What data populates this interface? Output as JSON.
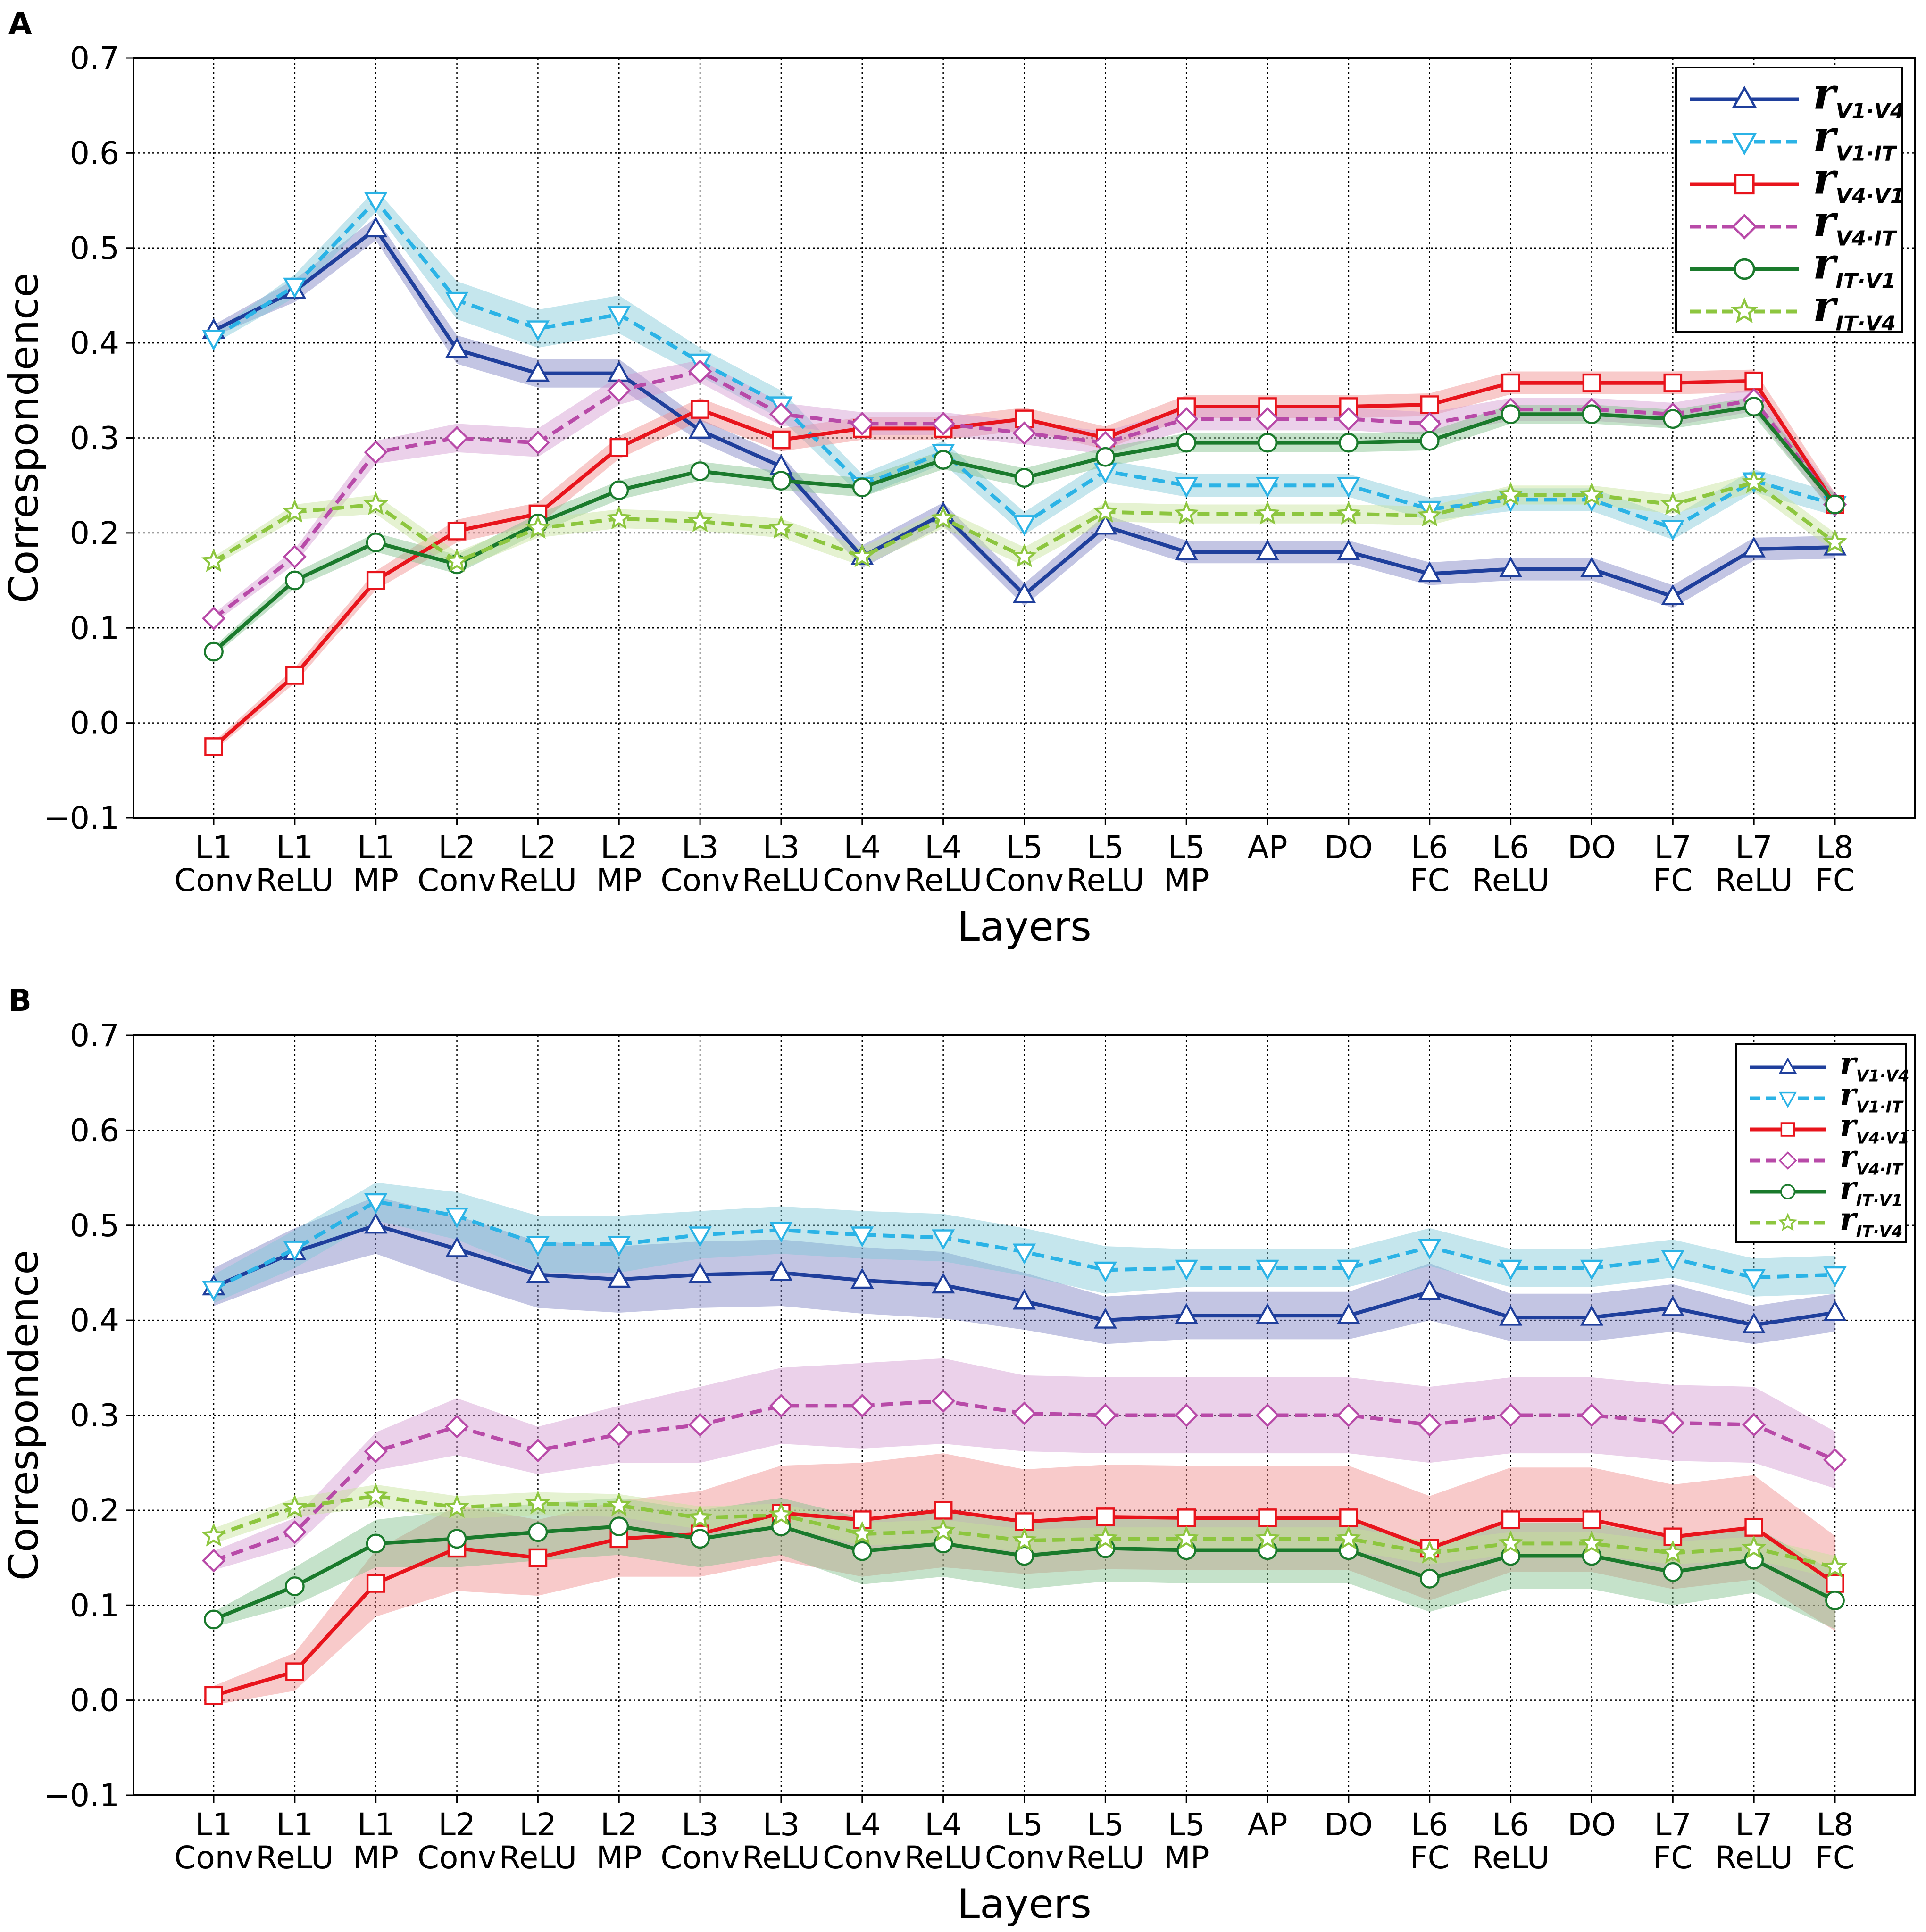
{
  "chart_data": [
    {
      "panel_label": "A",
      "type": "line",
      "xlabel": "Layers",
      "ylabel": "Correspondence",
      "ylim": [
        -0.1,
        0.7
      ],
      "yticks": [
        "−0.1",
        "0.0",
        "0.1",
        "0.2",
        "0.3",
        "0.4",
        "0.5",
        "0.6",
        "0.7"
      ],
      "grid": true,
      "legend_position": "top-right",
      "categories": [
        [
          "L1",
          "Conv"
        ],
        [
          "L1",
          "ReLU"
        ],
        [
          "L1",
          "MP"
        ],
        [
          "L2",
          "Conv"
        ],
        [
          "L2",
          "ReLU"
        ],
        [
          "L2",
          "MP"
        ],
        [
          "L3",
          "Conv"
        ],
        [
          "L3",
          "ReLU"
        ],
        [
          "L4",
          "Conv"
        ],
        [
          "L4",
          "ReLU"
        ],
        [
          "L5",
          "Conv"
        ],
        [
          "L5",
          "ReLU"
        ],
        [
          "L5",
          "MP"
        ],
        [
          "AP",
          ""
        ],
        [
          "DO",
          ""
        ],
        [
          "L6",
          "FC"
        ],
        [
          "L6",
          "ReLU"
        ],
        [
          "DO",
          ""
        ],
        [
          "L7",
          "FC"
        ],
        [
          "L7",
          "ReLU"
        ],
        [
          "L8",
          "FC"
        ]
      ],
      "series": [
        {
          "name": "r",
          "sub": "V1·V4",
          "color": "#1f3f9c",
          "band": "#7b7fc2",
          "style": "solid",
          "marker": "triangle-up",
          "values": [
            0.413,
            0.455,
            0.52,
            0.393,
            0.368,
            0.368,
            0.308,
            0.27,
            0.175,
            0.22,
            0.135,
            0.207,
            0.18,
            0.18,
            0.18,
            0.157,
            0.162,
            0.162,
            0.133,
            0.183,
            0.185
          ],
          "err": [
            0.006,
            0.012,
            0.012,
            0.015,
            0.015,
            0.015,
            0.012,
            0.012,
            0.012,
            0.012,
            0.012,
            0.012,
            0.012,
            0.012,
            0.012,
            0.012,
            0.012,
            0.012,
            0.012,
            0.012,
            0.012
          ]
        },
        {
          "name": "r",
          "sub": "V1·IT",
          "color": "#2bb3e6",
          "band": "#7fc7d8",
          "style": "dashed",
          "marker": "triangle-down",
          "values": [
            0.405,
            0.46,
            0.55,
            0.445,
            0.415,
            0.43,
            0.38,
            0.335,
            0.25,
            0.285,
            0.21,
            0.265,
            0.25,
            0.25,
            0.25,
            0.225,
            0.235,
            0.235,
            0.205,
            0.255,
            0.23
          ],
          "err": [
            0.006,
            0.012,
            0.012,
            0.02,
            0.02,
            0.02,
            0.015,
            0.015,
            0.012,
            0.012,
            0.012,
            0.012,
            0.012,
            0.012,
            0.012,
            0.012,
            0.012,
            0.012,
            0.012,
            0.012,
            0.012
          ]
        },
        {
          "name": "r",
          "sub": "V4·V1",
          "color": "#e8141c",
          "band": "#f08a8a",
          "style": "solid",
          "marker": "square",
          "values": [
            -0.025,
            0.05,
            0.15,
            0.202,
            0.22,
            0.29,
            0.33,
            0.298,
            0.31,
            0.31,
            0.32,
            0.3,
            0.333,
            0.333,
            0.333,
            0.335,
            0.358,
            0.358,
            0.358,
            0.36,
            0.23
          ],
          "err": [
            0.005,
            0.008,
            0.01,
            0.012,
            0.012,
            0.012,
            0.012,
            0.012,
            0.012,
            0.012,
            0.012,
            0.012,
            0.012,
            0.012,
            0.012,
            0.012,
            0.012,
            0.012,
            0.012,
            0.012,
            0.012
          ]
        },
        {
          "name": "r",
          "sub": "V4·IT",
          "color": "#b84aa8",
          "band": "#d39ad0",
          "style": "dashed",
          "marker": "diamond",
          "values": [
            0.11,
            0.175,
            0.285,
            0.3,
            0.295,
            0.35,
            0.37,
            0.325,
            0.315,
            0.315,
            0.305,
            0.295,
            0.32,
            0.32,
            0.32,
            0.315,
            0.33,
            0.33,
            0.325,
            0.34,
            0.23
          ],
          "err": [
            0.005,
            0.008,
            0.012,
            0.015,
            0.015,
            0.015,
            0.012,
            0.012,
            0.012,
            0.012,
            0.012,
            0.012,
            0.012,
            0.012,
            0.012,
            0.012,
            0.012,
            0.012,
            0.012,
            0.012,
            0.012
          ]
        },
        {
          "name": "r",
          "sub": "IT·V1",
          "color": "#1a7a2c",
          "band": "#7fbf8a",
          "style": "solid",
          "marker": "circle",
          "values": [
            0.075,
            0.15,
            0.19,
            0.167,
            0.21,
            0.245,
            0.265,
            0.255,
            0.248,
            0.277,
            0.258,
            0.28,
            0.295,
            0.295,
            0.295,
            0.297,
            0.325,
            0.325,
            0.32,
            0.333,
            0.23
          ],
          "err": [
            0.005,
            0.008,
            0.01,
            0.01,
            0.01,
            0.01,
            0.01,
            0.01,
            0.01,
            0.01,
            0.01,
            0.01,
            0.01,
            0.01,
            0.01,
            0.01,
            0.01,
            0.01,
            0.01,
            0.01,
            0.01
          ]
        },
        {
          "name": "r",
          "sub": "IT·V4",
          "color": "#8dc63f",
          "band": "#c6e39a",
          "style": "dashed",
          "marker": "star",
          "values": [
            0.17,
            0.222,
            0.23,
            0.17,
            0.205,
            0.215,
            0.212,
            0.205,
            0.175,
            0.215,
            0.175,
            0.222,
            0.22,
            0.22,
            0.22,
            0.218,
            0.24,
            0.24,
            0.23,
            0.253,
            0.19
          ],
          "err": [
            0.005,
            0.008,
            0.01,
            0.01,
            0.01,
            0.01,
            0.01,
            0.01,
            0.01,
            0.01,
            0.01,
            0.01,
            0.01,
            0.01,
            0.01,
            0.01,
            0.01,
            0.01,
            0.01,
            0.01,
            0.01
          ]
        }
      ]
    },
    {
      "panel_label": "B",
      "type": "line",
      "xlabel": "Layers",
      "ylabel": "Correspondence",
      "ylim": [
        -0.1,
        0.7
      ],
      "yticks": [
        "−0.1",
        "0.0",
        "0.1",
        "0.2",
        "0.3",
        "0.4",
        "0.5",
        "0.6",
        "0.7"
      ],
      "grid": true,
      "legend_position": "top-right",
      "categories": [
        [
          "L1",
          "Conv"
        ],
        [
          "L1",
          "ReLU"
        ],
        [
          "L1",
          "MP"
        ],
        [
          "L2",
          "Conv"
        ],
        [
          "L2",
          "ReLU"
        ],
        [
          "L2",
          "MP"
        ],
        [
          "L3",
          "Conv"
        ],
        [
          "L3",
          "ReLU"
        ],
        [
          "L4",
          "Conv"
        ],
        [
          "L4",
          "ReLU"
        ],
        [
          "L5",
          "Conv"
        ],
        [
          "L5",
          "ReLU"
        ],
        [
          "L5",
          "MP"
        ],
        [
          "AP",
          ""
        ],
        [
          "DO",
          ""
        ],
        [
          "L6",
          "FC"
        ],
        [
          "L6",
          "ReLU"
        ],
        [
          "DO",
          ""
        ],
        [
          "L7",
          "FC"
        ],
        [
          "L7",
          "ReLU"
        ],
        [
          "L8",
          "FC"
        ]
      ],
      "series": [
        {
          "name": "r",
          "sub": "V1·V4",
          "color": "#1f3f9c",
          "band": "#7b7fc2",
          "style": "solid",
          "marker": "triangle-up",
          "values": [
            0.435,
            0.472,
            0.5,
            0.475,
            0.448,
            0.443,
            0.448,
            0.45,
            0.442,
            0.437,
            0.42,
            0.4,
            0.405,
            0.405,
            0.405,
            0.43,
            0.403,
            0.403,
            0.413,
            0.395,
            0.408
          ],
          "err": [
            0.02,
            0.025,
            0.03,
            0.035,
            0.035,
            0.035,
            0.035,
            0.035,
            0.035,
            0.035,
            0.03,
            0.025,
            0.025,
            0.025,
            0.025,
            0.03,
            0.025,
            0.025,
            0.025,
            0.02,
            0.02
          ]
        },
        {
          "name": "r",
          "sub": "V1·IT",
          "color": "#2bb3e6",
          "band": "#7fc7d8",
          "style": "dashed",
          "marker": "triangle-down",
          "values": [
            0.433,
            0.475,
            0.525,
            0.51,
            0.48,
            0.48,
            0.49,
            0.495,
            0.49,
            0.487,
            0.472,
            0.453,
            0.455,
            0.455,
            0.455,
            0.477,
            0.455,
            0.455,
            0.465,
            0.445,
            0.448
          ],
          "err": [
            0.015,
            0.02,
            0.02,
            0.025,
            0.03,
            0.03,
            0.025,
            0.025,
            0.025,
            0.025,
            0.025,
            0.025,
            0.02,
            0.02,
            0.02,
            0.02,
            0.02,
            0.02,
            0.02,
            0.02,
            0.02
          ]
        },
        {
          "name": "r",
          "sub": "V4·V1",
          "color": "#e8141c",
          "band": "#f08a8a",
          "style": "solid",
          "marker": "square",
          "values": [
            0.005,
            0.03,
            0.123,
            0.16,
            0.15,
            0.17,
            0.175,
            0.197,
            0.19,
            0.2,
            0.188,
            0.193,
            0.192,
            0.192,
            0.192,
            0.16,
            0.19,
            0.19,
            0.172,
            0.182,
            0.123
          ],
          "err": [
            0.01,
            0.02,
            0.035,
            0.045,
            0.04,
            0.04,
            0.045,
            0.05,
            0.06,
            0.06,
            0.055,
            0.055,
            0.055,
            0.055,
            0.055,
            0.055,
            0.055,
            0.055,
            0.055,
            0.055,
            0.05
          ]
        },
        {
          "name": "r",
          "sub": "V4·IT",
          "color": "#b84aa8",
          "band": "#d39ad0",
          "style": "dashed",
          "marker": "diamond",
          "values": [
            0.147,
            0.177,
            0.262,
            0.288,
            0.263,
            0.28,
            0.29,
            0.31,
            0.31,
            0.315,
            0.302,
            0.3,
            0.3,
            0.3,
            0.3,
            0.29,
            0.3,
            0.3,
            0.292,
            0.29,
            0.253
          ],
          "err": [
            0.01,
            0.015,
            0.02,
            0.03,
            0.025,
            0.03,
            0.04,
            0.04,
            0.045,
            0.045,
            0.04,
            0.04,
            0.04,
            0.04,
            0.04,
            0.04,
            0.04,
            0.04,
            0.04,
            0.04,
            0.03
          ]
        },
        {
          "name": "r",
          "sub": "IT·V1",
          "color": "#1a7a2c",
          "band": "#7fbf8a",
          "style": "solid",
          "marker": "circle",
          "values": [
            0.085,
            0.12,
            0.165,
            0.17,
            0.177,
            0.183,
            0.17,
            0.183,
            0.157,
            0.165,
            0.152,
            0.16,
            0.158,
            0.158,
            0.158,
            0.128,
            0.152,
            0.152,
            0.135,
            0.148,
            0.105
          ],
          "err": [
            0.008,
            0.02,
            0.025,
            0.03,
            0.03,
            0.03,
            0.03,
            0.03,
            0.035,
            0.035,
            0.035,
            0.035,
            0.035,
            0.035,
            0.035,
            0.035,
            0.035,
            0.035,
            0.035,
            0.035,
            0.03
          ]
        },
        {
          "name": "r",
          "sub": "IT·V4",
          "color": "#8dc63f",
          "band": "#c6e39a",
          "style": "dashed",
          "marker": "star",
          "values": [
            0.173,
            0.203,
            0.215,
            0.203,
            0.207,
            0.205,
            0.192,
            0.195,
            0.175,
            0.178,
            0.168,
            0.17,
            0.17,
            0.17,
            0.17,
            0.155,
            0.165,
            0.165,
            0.155,
            0.16,
            0.14
          ],
          "err": [
            0.008,
            0.01,
            0.012,
            0.012,
            0.012,
            0.012,
            0.012,
            0.012,
            0.012,
            0.012,
            0.012,
            0.012,
            0.012,
            0.012,
            0.012,
            0.012,
            0.012,
            0.012,
            0.012,
            0.012,
            0.012
          ]
        }
      ]
    }
  ]
}
